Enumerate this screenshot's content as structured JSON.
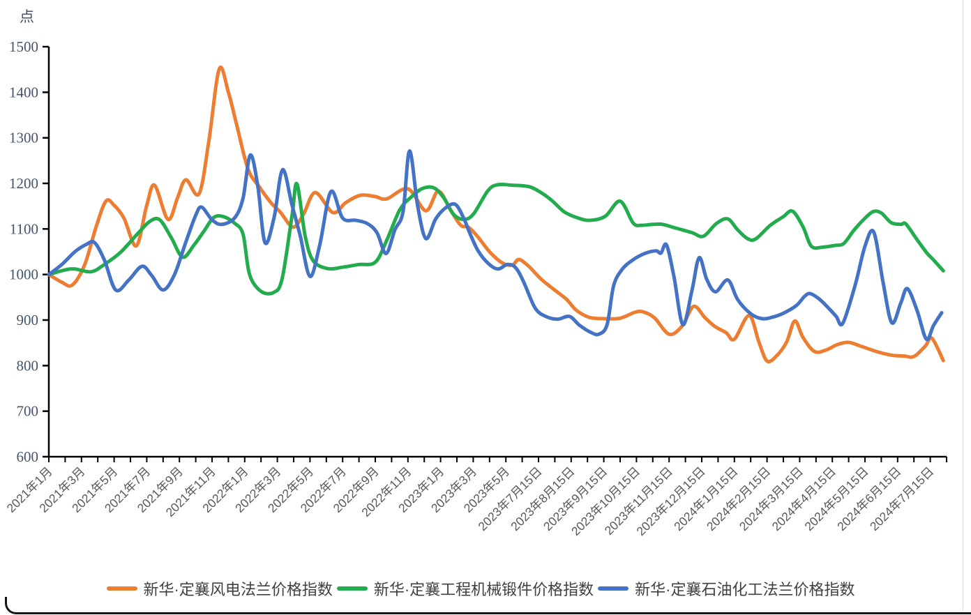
{
  "unit_label": "点",
  "axis_color": "#000000",
  "y_axis": {
    "min": 600,
    "max": 1500,
    "step": 100,
    "tick_labels": [
      "600",
      "700",
      "800",
      "900",
      "1000",
      "1100",
      "1200",
      "1300",
      "1400",
      "1500"
    ],
    "label_color": "#44546A"
  },
  "x_axis": {
    "label_color": "#595959",
    "labels": [
      "2021年1月",
      "2021年3月",
      "2021年5月",
      "2021年7月",
      "2021年9月",
      "2021年11月",
      "2022年1月",
      "2022年3月",
      "2022年5月",
      "2022年7月",
      "2022年9月",
      "2022年11月",
      "2023年1月",
      "2023年3月",
      "2023年5月",
      "2023年7月15日",
      "2023年8月15日",
      "2023年9月15日",
      "2023年10月15日",
      "2023年11月15日",
      "2023年12月15日",
      "2024年1月15日",
      "2024年2月15日",
      "2024年3月15日",
      "2024年4月15日",
      "2024年5月15日",
      "2024年6月15日",
      "2024年7月15日"
    ]
  },
  "legend": [
    {
      "label": "新华·定襄风电法兰价格指数",
      "color": "#ED7D31"
    },
    {
      "label": "新华·定襄工程机械锻件价格指数",
      "color": "#22AC4E"
    },
    {
      "label": "新华·定襄石油化工法兰价格指数",
      "color": "#4472C4"
    }
  ],
  "chart_data": {
    "type": "line",
    "title": "",
    "ylabel": "点",
    "ylim": [
      600,
      1500
    ],
    "grid": false,
    "legend_position": "bottom",
    "x_note": "x values are x-axis tick-label indices (0 = 2021年1月, 27 = 2024年7月15日); minor ticks at every 0.5",
    "categories": [
      "2021年1月",
      "2021年3月",
      "2021年5月",
      "2021年7月",
      "2021年9月",
      "2021年11月",
      "2022年1月",
      "2022年3月",
      "2022年5月",
      "2022年7月",
      "2022年9月",
      "2022年11月",
      "2023年1月",
      "2023年3月",
      "2023年5月",
      "2023年7月15日",
      "2023年8月15日",
      "2023年9月15日",
      "2023年10月15日",
      "2023年11月15日",
      "2023年12月15日",
      "2024年1月15日",
      "2024年2月15日",
      "2024年3月15日",
      "2024年4月15日",
      "2024年5月15日",
      "2024年6月15日",
      "2024年7月15日"
    ],
    "series": [
      {
        "name": "新华·定襄风电法兰价格指数",
        "color": "#ED7D31",
        "points": [
          [
            0,
            1000
          ],
          [
            0.4,
            983
          ],
          [
            0.72,
            977
          ],
          [
            1.1,
            1022
          ],
          [
            1.45,
            1105
          ],
          [
            1.75,
            1161
          ],
          [
            2.0,
            1152
          ],
          [
            2.3,
            1124
          ],
          [
            2.68,
            1063
          ],
          [
            3.0,
            1152
          ],
          [
            3.24,
            1196
          ],
          [
            3.65,
            1121
          ],
          [
            3.95,
            1170
          ],
          [
            4.2,
            1208
          ],
          [
            4.6,
            1177
          ],
          [
            4.9,
            1292
          ],
          [
            5.22,
            1451
          ],
          [
            5.5,
            1400
          ],
          [
            5.75,
            1330
          ],
          [
            6.1,
            1232
          ],
          [
            6.45,
            1192
          ],
          [
            6.8,
            1158
          ],
          [
            7.1,
            1136
          ],
          [
            7.48,
            1104
          ],
          [
            7.8,
            1132
          ],
          [
            8.16,
            1180
          ],
          [
            8.7,
            1136
          ],
          [
            9.1,
            1158
          ],
          [
            9.55,
            1174
          ],
          [
            10.0,
            1171
          ],
          [
            10.35,
            1166
          ],
          [
            11.0,
            1188
          ],
          [
            11.55,
            1140
          ],
          [
            11.93,
            1183
          ],
          [
            12.3,
            1142
          ],
          [
            12.62,
            1108
          ],
          [
            12.85,
            1104
          ],
          [
            13.15,
            1082
          ],
          [
            13.5,
            1050
          ],
          [
            13.9,
            1025
          ],
          [
            14.2,
            1021
          ],
          [
            14.4,
            1033
          ],
          [
            14.7,
            1018
          ],
          [
            15.05,
            992
          ],
          [
            15.35,
            974
          ],
          [
            15.85,
            946
          ],
          [
            16.15,
            922
          ],
          [
            16.55,
            906
          ],
          [
            17.0,
            903
          ],
          [
            17.5,
            904
          ],
          [
            17.95,
            917
          ],
          [
            18.2,
            918
          ],
          [
            18.55,
            905
          ],
          [
            19.0,
            869
          ],
          [
            19.4,
            887
          ],
          [
            19.75,
            930
          ],
          [
            20.1,
            905
          ],
          [
            20.4,
            886
          ],
          [
            20.75,
            872
          ],
          [
            21.0,
            858
          ],
          [
            21.45,
            910
          ],
          [
            21.75,
            852
          ],
          [
            22.0,
            810
          ],
          [
            22.3,
            822
          ],
          [
            22.6,
            852
          ],
          [
            22.85,
            898
          ],
          [
            23.1,
            862
          ],
          [
            23.45,
            831
          ],
          [
            23.8,
            834
          ],
          [
            24.15,
            846
          ],
          [
            24.5,
            851
          ],
          [
            24.9,
            842
          ],
          [
            25.35,
            831
          ],
          [
            25.8,
            823
          ],
          [
            26.2,
            821
          ],
          [
            26.5,
            820
          ],
          [
            26.85,
            843
          ],
          [
            27.05,
            860
          ],
          [
            27.4,
            811
          ]
        ]
      },
      {
        "name": "新华·定襄工程机械锻件价格指数",
        "color": "#22AC4E",
        "points": [
          [
            0,
            1000
          ],
          [
            0.5,
            1010
          ],
          [
            0.8,
            1012
          ],
          [
            1.3,
            1006
          ],
          [
            1.7,
            1022
          ],
          [
            2.2,
            1049
          ],
          [
            2.75,
            1092
          ],
          [
            3.1,
            1117
          ],
          [
            3.4,
            1120
          ],
          [
            3.75,
            1081
          ],
          [
            4.1,
            1038
          ],
          [
            4.45,
            1065
          ],
          [
            4.75,
            1095
          ],
          [
            5.05,
            1125
          ],
          [
            5.35,
            1127
          ],
          [
            5.7,
            1112
          ],
          [
            5.95,
            1088
          ],
          [
            6.15,
            1000
          ],
          [
            6.5,
            963
          ],
          [
            6.9,
            961
          ],
          [
            7.15,
            992
          ],
          [
            7.45,
            1130
          ],
          [
            7.6,
            1199
          ],
          [
            7.85,
            1085
          ],
          [
            8.1,
            1030
          ],
          [
            8.55,
            1013
          ],
          [
            9.0,
            1016
          ],
          [
            9.5,
            1022
          ],
          [
            10.0,
            1027
          ],
          [
            10.35,
            1075
          ],
          [
            10.75,
            1142
          ],
          [
            11.1,
            1170
          ],
          [
            11.45,
            1189
          ],
          [
            11.8,
            1190
          ],
          [
            12.1,
            1168
          ],
          [
            12.4,
            1132
          ],
          [
            12.7,
            1121
          ],
          [
            13.0,
            1132
          ],
          [
            13.45,
            1184
          ],
          [
            13.75,
            1197
          ],
          [
            14.2,
            1196
          ],
          [
            14.7,
            1193
          ],
          [
            15.05,
            1181
          ],
          [
            15.4,
            1163
          ],
          [
            15.8,
            1137
          ],
          [
            16.25,
            1123
          ],
          [
            16.6,
            1119
          ],
          [
            17.05,
            1128
          ],
          [
            17.5,
            1161
          ],
          [
            17.9,
            1113
          ],
          [
            18.15,
            1108
          ],
          [
            18.5,
            1110
          ],
          [
            18.8,
            1110
          ],
          [
            19.2,
            1102
          ],
          [
            19.7,
            1092
          ],
          [
            20.05,
            1084
          ],
          [
            20.45,
            1112
          ],
          [
            20.8,
            1122
          ],
          [
            21.1,
            1098
          ],
          [
            21.4,
            1079
          ],
          [
            21.65,
            1078
          ],
          [
            22.1,
            1108
          ],
          [
            22.5,
            1127
          ],
          [
            22.78,
            1139
          ],
          [
            23.1,
            1105
          ],
          [
            23.36,
            1062
          ],
          [
            23.7,
            1060
          ],
          [
            24.1,
            1064
          ],
          [
            24.35,
            1068
          ],
          [
            24.65,
            1096
          ],
          [
            24.95,
            1120
          ],
          [
            25.25,
            1138
          ],
          [
            25.5,
            1135
          ],
          [
            25.8,
            1114
          ],
          [
            26.1,
            1110
          ],
          [
            26.25,
            1111
          ],
          [
            26.6,
            1076
          ],
          [
            26.9,
            1047
          ],
          [
            27.1,
            1032
          ],
          [
            27.4,
            1008
          ]
        ]
      },
      {
        "name": "新华·定襄石油化工法兰价格指数",
        "color": "#4472C4",
        "points": [
          [
            0,
            1000
          ],
          [
            0.4,
            1022
          ],
          [
            0.8,
            1050
          ],
          [
            1.15,
            1066
          ],
          [
            1.4,
            1070
          ],
          [
            1.7,
            1032
          ],
          [
            2.05,
            966
          ],
          [
            2.45,
            988
          ],
          [
            2.85,
            1018
          ],
          [
            3.15,
            998
          ],
          [
            3.5,
            966
          ],
          [
            3.85,
            1000
          ],
          [
            4.2,
            1072
          ],
          [
            4.5,
            1130
          ],
          [
            4.68,
            1148
          ],
          [
            5.0,
            1120
          ],
          [
            5.3,
            1110
          ],
          [
            5.7,
            1125
          ],
          [
            5.95,
            1168
          ],
          [
            6.17,
            1262
          ],
          [
            6.4,
            1195
          ],
          [
            6.62,
            1070
          ],
          [
            6.9,
            1125
          ],
          [
            7.16,
            1230
          ],
          [
            7.45,
            1152
          ],
          [
            7.7,
            1085
          ],
          [
            8.0,
            996
          ],
          [
            8.3,
            1065
          ],
          [
            8.64,
            1182
          ],
          [
            9.0,
            1124
          ],
          [
            9.4,
            1119
          ],
          [
            9.75,
            1112
          ],
          [
            10.05,
            1092
          ],
          [
            10.33,
            1046
          ],
          [
            10.6,
            1098
          ],
          [
            10.85,
            1138
          ],
          [
            11.05,
            1271
          ],
          [
            11.3,
            1150
          ],
          [
            11.55,
            1079
          ],
          [
            11.85,
            1122
          ],
          [
            12.15,
            1146
          ],
          [
            12.45,
            1154
          ],
          [
            12.7,
            1125
          ],
          [
            12.9,
            1090
          ],
          [
            13.15,
            1052
          ],
          [
            13.45,
            1025
          ],
          [
            13.75,
            1012
          ],
          [
            14.05,
            1022
          ],
          [
            14.3,
            1015
          ],
          [
            14.55,
            983
          ],
          [
            14.9,
            926
          ],
          [
            15.25,
            907
          ],
          [
            15.6,
            902
          ],
          [
            15.95,
            908
          ],
          [
            16.25,
            889
          ],
          [
            16.6,
            873
          ],
          [
            16.85,
            869
          ],
          [
            17.1,
            890
          ],
          [
            17.3,
            975
          ],
          [
            17.55,
            1010
          ],
          [
            17.85,
            1030
          ],
          [
            18.25,
            1046
          ],
          [
            18.6,
            1052
          ],
          [
            18.75,
            1047
          ],
          [
            18.92,
            1065
          ],
          [
            19.15,
            995
          ],
          [
            19.42,
            890
          ],
          [
            19.7,
            965
          ],
          [
            19.92,
            1037
          ],
          [
            20.15,
            990
          ],
          [
            20.42,
            962
          ],
          [
            20.8,
            988
          ],
          [
            21.1,
            945
          ],
          [
            21.5,
            914
          ],
          [
            21.85,
            903
          ],
          [
            22.15,
            906
          ],
          [
            22.5,
            915
          ],
          [
            22.9,
            932
          ],
          [
            23.15,
            952
          ],
          [
            23.32,
            958
          ],
          [
            23.6,
            946
          ],
          [
            23.9,
            925
          ],
          [
            24.12,
            908
          ],
          [
            24.32,
            893
          ],
          [
            24.7,
            977
          ],
          [
            25.0,
            1062
          ],
          [
            25.27,
            1093
          ],
          [
            25.55,
            985
          ],
          [
            25.82,
            894
          ],
          [
            26.1,
            938
          ],
          [
            26.3,
            969
          ],
          [
            26.6,
            920
          ],
          [
            26.88,
            858
          ],
          [
            27.1,
            888
          ],
          [
            27.35,
            916
          ]
        ]
      }
    ]
  }
}
